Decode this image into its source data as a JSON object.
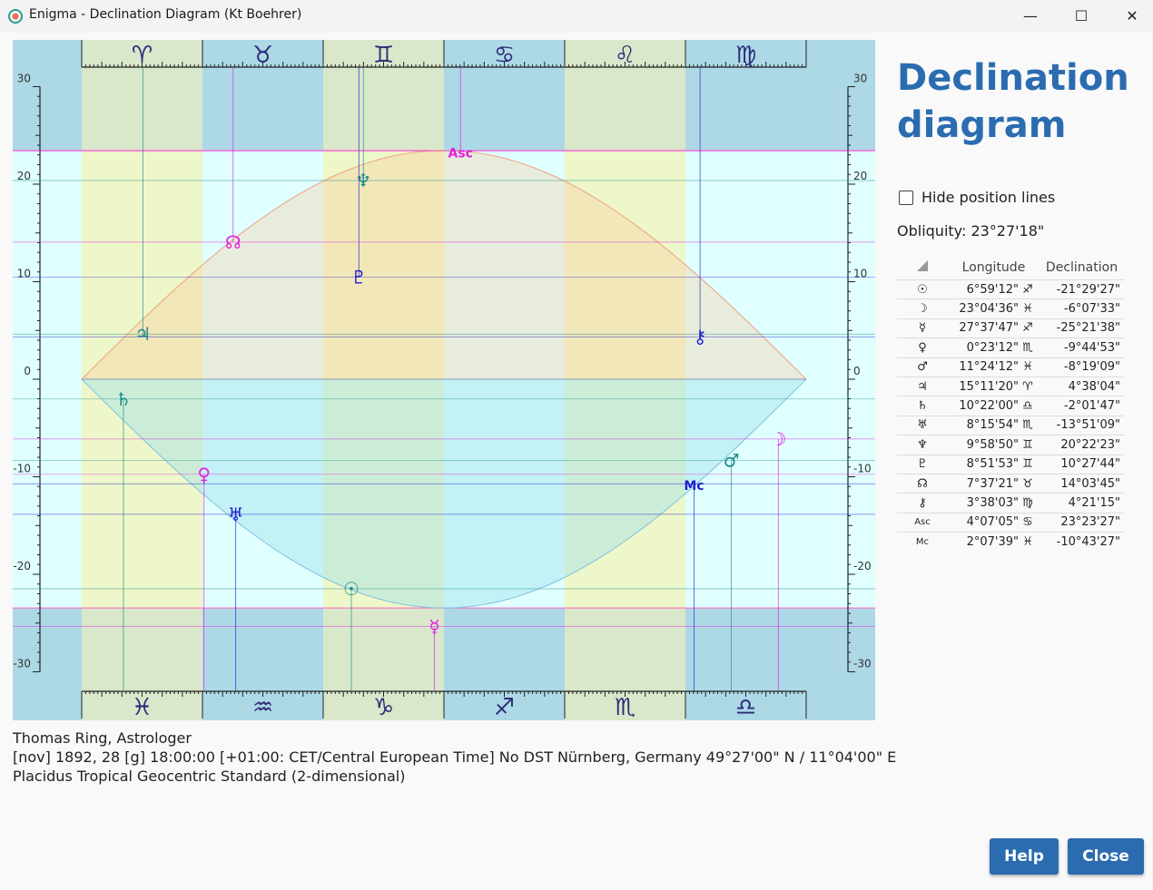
{
  "window": {
    "title": "Enigma - Declination Diagram (Kt Boehrer)",
    "minimize_glyph": "—",
    "maximize_glyph": "☐",
    "close_glyph": "✕"
  },
  "heading": "Declination diagram",
  "hide_lines": {
    "label": "Hide position lines",
    "checked": false
  },
  "obliquity": "Obliquity: 23°27'18\"",
  "table": {
    "col_longitude": "Longitude",
    "col_declination": "Declination",
    "rows": [
      {
        "glyph": "☉",
        "lon": "6°59'12\"",
        "sign": "♐",
        "dec": "-21°29'27\""
      },
      {
        "glyph": "☽",
        "lon": "23°04'36\"",
        "sign": "♓",
        "dec": "-6°07'33\""
      },
      {
        "glyph": "☿",
        "lon": "27°37'47\"",
        "sign": "♐",
        "dec": "-25°21'38\""
      },
      {
        "glyph": "♀",
        "lon": "0°23'12\"",
        "sign": "♏",
        "dec": "-9°44'53\""
      },
      {
        "glyph": "♂",
        "lon": "11°24'12\"",
        "sign": "♓",
        "dec": "-8°19'09\""
      },
      {
        "glyph": "♃",
        "lon": "15°11'20\"",
        "sign": "♈",
        "dec": "4°38'04\""
      },
      {
        "glyph": "♄",
        "lon": "10°22'00\"",
        "sign": "♎",
        "dec": "-2°01'47\""
      },
      {
        "glyph": "♅",
        "lon": "8°15'54\"",
        "sign": "♏",
        "dec": "-13°51'09\""
      },
      {
        "glyph": "♆",
        "lon": "9°58'50\"",
        "sign": "♊",
        "dec": "20°22'23\""
      },
      {
        "glyph": "♇",
        "lon": "8°51'53\"",
        "sign": "♊",
        "dec": "10°27'44\""
      },
      {
        "glyph": "☊",
        "lon": "7°37'21\"",
        "sign": "♉",
        "dec": "14°03'45\""
      },
      {
        "glyph": "⚷",
        "lon": "3°38'03\"",
        "sign": "♍",
        "dec": "4°21'15\""
      },
      {
        "glyph": "Asc",
        "lon": "4°07'05\"",
        "sign": "♋",
        "dec": "23°23'27\""
      },
      {
        "glyph": "Mc",
        "lon": "2°07'39\"",
        "sign": "♓",
        "dec": "-10°43'27\""
      }
    ]
  },
  "footer": {
    "line1": "Thomas Ring, Astrologer",
    "line2": "[nov] 1892, 28 [g] 18:00:00 [+01:00: CET/Central European Time] No DST Nürnberg, Germany  49°27'00\" N / 11°04'00\" E",
    "line3": "Placidus Tropical Geocentric Standard (2-dimensional)"
  },
  "buttons": {
    "help": "Help",
    "close": "Close"
  },
  "chart_data": {
    "type": "scatter",
    "obliquity_deg": 23.455,
    "ylim": [
      -30,
      30
    ],
    "y_ticks": [
      30,
      20,
      10,
      0,
      -10,
      -20,
      -30
    ],
    "top_signs": [
      "♈",
      "♉",
      "♊",
      "♋",
      "♌",
      "♍"
    ],
    "bottom_signs": [
      "♓",
      "♒",
      "♑",
      "♐",
      "♏",
      "♎"
    ],
    "points": [
      {
        "glyph": "☉",
        "lon": 246.99,
        "dec": -21.49,
        "color": "#1a8a8a"
      },
      {
        "glyph": "☽",
        "lon": 353.08,
        "dec": -6.13,
        "color": "#e020e0"
      },
      {
        "glyph": "☿",
        "lon": 267.63,
        "dec": -25.36,
        "color": "#e020e0"
      },
      {
        "glyph": "♀",
        "lon": 210.39,
        "dec": -9.75,
        "color": "#e020e0"
      },
      {
        "glyph": "♂",
        "lon": 341.4,
        "dec": -8.32,
        "color": "#1a8a8a"
      },
      {
        "glyph": "♃",
        "lon": 15.19,
        "dec": 4.63,
        "color": "#1a8a8a"
      },
      {
        "glyph": "♄",
        "lon": 190.37,
        "dec": -2.03,
        "color": "#1a8a8a"
      },
      {
        "glyph": "♅",
        "lon": 218.27,
        "dec": -13.85,
        "color": "#2020d0"
      },
      {
        "glyph": "♆",
        "lon": 69.98,
        "dec": 20.37,
        "color": "#1a8a8a"
      },
      {
        "glyph": "♇",
        "lon": 68.86,
        "dec": 10.46,
        "color": "#2020d0"
      },
      {
        "glyph": "☊",
        "lon": 37.62,
        "dec": 14.06,
        "color": "#e020e0"
      },
      {
        "glyph": "⚷",
        "lon": 153.63,
        "dec": 4.35,
        "color": "#2020d0"
      },
      {
        "glyph": "Asc",
        "lon": 94.12,
        "dec": 23.39,
        "color": "#e020e0"
      },
      {
        "glyph": "Mc",
        "lon": 332.13,
        "dec": -10.72,
        "color": "#2020d0"
      }
    ]
  },
  "colors": {
    "accent": "#2b6cb0"
  }
}
